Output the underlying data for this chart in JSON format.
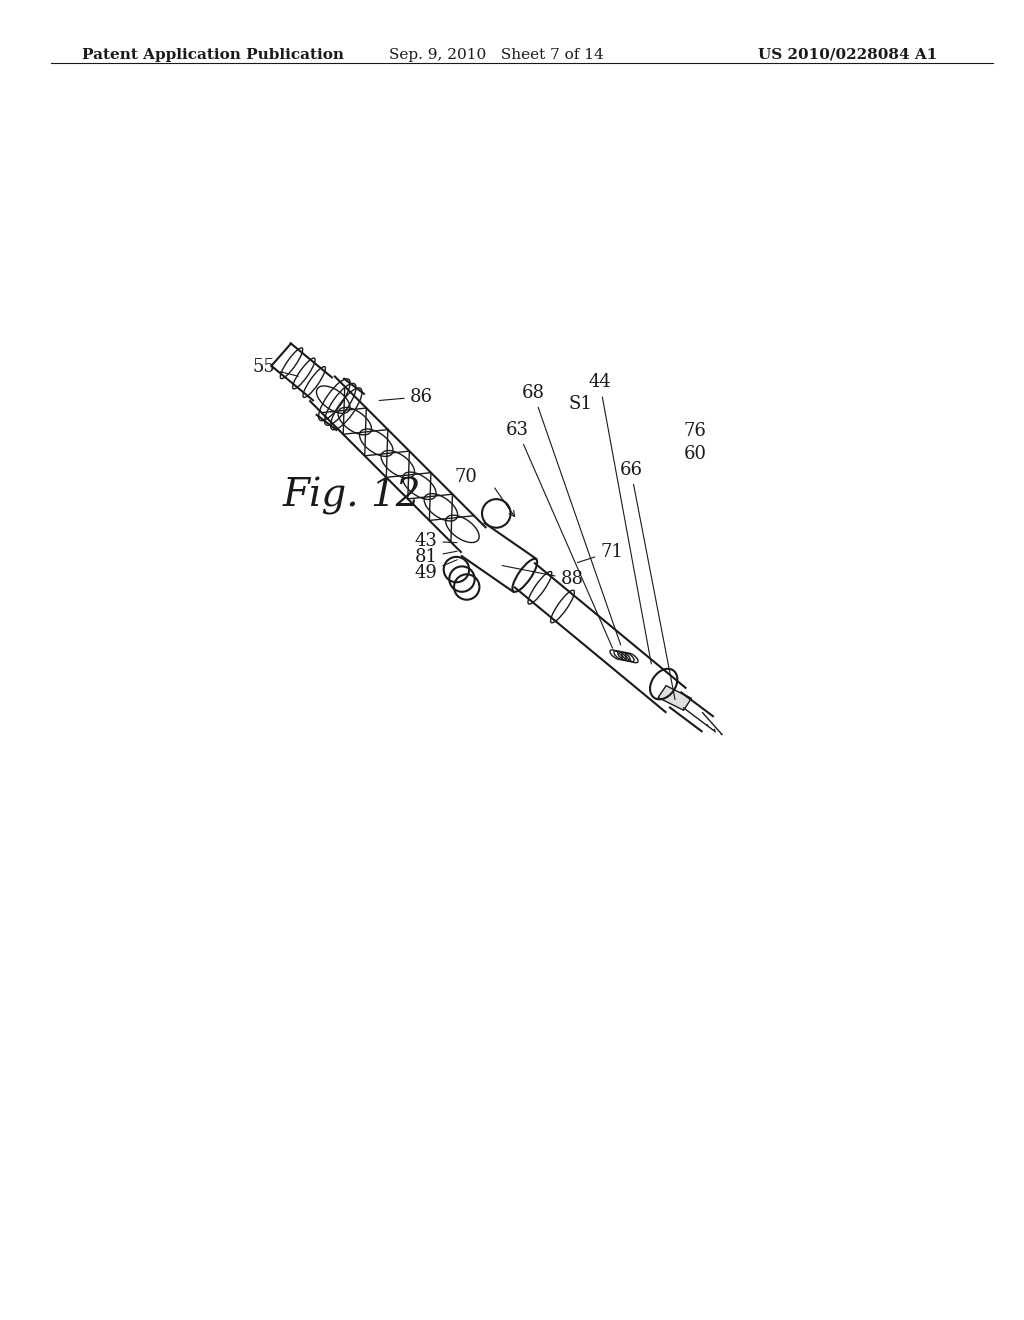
{
  "background_color": "#ffffff",
  "header_left": "Patent Application Publication",
  "header_mid": "Sep. 9, 2010   Sheet 7 of 14",
  "header_right": "US 2010/0228084 A1",
  "fig_label": "Fig. 12",
  "line_color": "#1a1a1a",
  "text_color": "#1a1a1a",
  "header_fontsize": 11,
  "label_fontsize": 13,
  "fig_label_fontsize": 28
}
